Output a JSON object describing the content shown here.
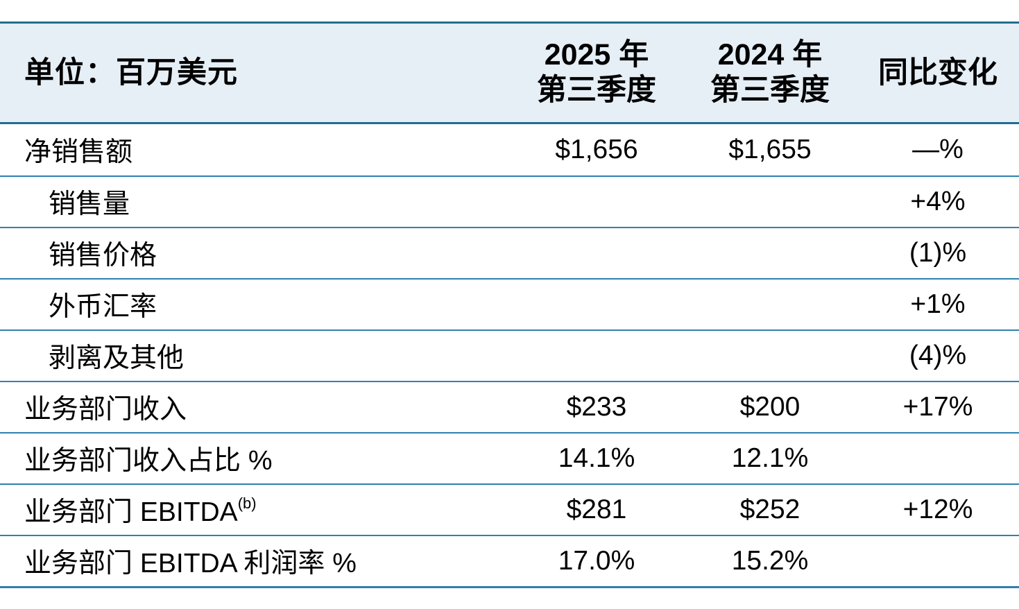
{
  "table": {
    "header": {
      "unit_label": "单位：百万美元",
      "col_2025": {
        "line1": "2025 年",
        "line2": "第三季度"
      },
      "col_2024": {
        "line1": "2024 年",
        "line2": "第三季度"
      },
      "col_yoy": "同比变化"
    },
    "rows": [
      {
        "label": "净销售额",
        "label_sup": "",
        "q3_2025": "$1,656",
        "q3_2024": "$1,655",
        "yoy": "—%"
      },
      {
        "label": "销售量",
        "label_sup": "",
        "q3_2025": "",
        "q3_2024": "",
        "yoy": "+4%"
      },
      {
        "label": "销售价格",
        "label_sup": "",
        "q3_2025": "",
        "q3_2024": "",
        "yoy": "(1)%"
      },
      {
        "label": "外币汇率",
        "label_sup": "",
        "q3_2025": "",
        "q3_2024": "",
        "yoy": "+1%"
      },
      {
        "label": "剥离及其他",
        "label_sup": "",
        "q3_2025": "",
        "q3_2024": "",
        "yoy": "(4)%"
      },
      {
        "label": "业务部门收入",
        "label_sup": "",
        "q3_2025": "$233",
        "q3_2024": "$200",
        "yoy": "+17%"
      },
      {
        "label": "业务部门收入占比 %",
        "label_sup": "",
        "q3_2025": "14.1%",
        "q3_2024": "12.1%",
        "yoy": ""
      },
      {
        "label": "业务部门 EBITDA",
        "label_sup": "(b)",
        "q3_2025": "$281",
        "q3_2024": "$252",
        "yoy": "+12%"
      },
      {
        "label": "业务部门 EBITDA 利润率 %",
        "label_sup": "",
        "q3_2025": "17.0%",
        "q3_2024": "15.2%",
        "yoy": ""
      }
    ],
    "colors": {
      "header_bg": "#e6eef6",
      "header_border": "#1f6e8f",
      "row_border": "#2e81ad",
      "bottom_border": "#2e7dab",
      "text": "#000000"
    }
  }
}
